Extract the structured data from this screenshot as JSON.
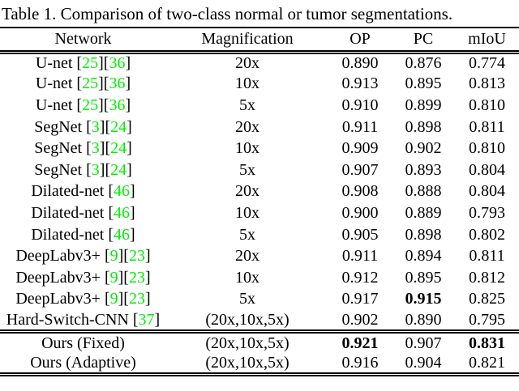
{
  "caption": "Table 1. Comparison of two-class normal or tumor segmentations.",
  "columns": [
    "Network",
    "Magnification",
    "OP",
    "PC",
    "mIoU"
  ],
  "citation_brackets": {
    "open": "[",
    "close": "]"
  },
  "colors": {
    "citation_green": "#00f000",
    "text": "#000000",
    "background": "#ffffff"
  },
  "chart_data": {
    "type": "table",
    "title": "Table 1. Comparison of two-class normal or tumor segmentations.",
    "columns": [
      "Network",
      "Magnification",
      "OP",
      "PC",
      "mIoU"
    ]
  },
  "rows": [
    {
      "network": "U-net",
      "citations": [
        "25",
        "36"
      ],
      "magnification": "20x",
      "op": "0.890",
      "op_bold": false,
      "pc": "0.876",
      "pc_bold": false,
      "miou": "0.774",
      "miou_bold": false,
      "section_end": false
    },
    {
      "network": "U-net",
      "citations": [
        "25",
        "36"
      ],
      "magnification": "10x",
      "op": "0.913",
      "op_bold": false,
      "pc": "0.895",
      "pc_bold": false,
      "miou": "0.813",
      "miou_bold": false,
      "section_end": false
    },
    {
      "network": "U-net",
      "citations": [
        "25",
        "36"
      ],
      "magnification": "5x",
      "op": "0.910",
      "op_bold": false,
      "pc": "0.899",
      "pc_bold": false,
      "miou": "0.810",
      "miou_bold": false,
      "section_end": false
    },
    {
      "network": "SegNet",
      "citations": [
        "3",
        "24"
      ],
      "magnification": "20x",
      "op": "0.911",
      "op_bold": false,
      "pc": "0.898",
      "pc_bold": false,
      "miou": "0.811",
      "miou_bold": false,
      "section_end": false
    },
    {
      "network": "SegNet",
      "citations": [
        "3",
        "24"
      ],
      "magnification": "10x",
      "op": "0.909",
      "op_bold": false,
      "pc": "0.902",
      "pc_bold": false,
      "miou": "0.810",
      "miou_bold": false,
      "section_end": false
    },
    {
      "network": "SegNet",
      "citations": [
        "3",
        "24"
      ],
      "magnification": "5x",
      "op": "0.907",
      "op_bold": false,
      "pc": "0.893",
      "pc_bold": false,
      "miou": "0.804",
      "miou_bold": false,
      "section_end": false
    },
    {
      "network": "Dilated-net",
      "citations": [
        "46"
      ],
      "magnification": "20x",
      "op": "0.908",
      "op_bold": false,
      "pc": "0.888",
      "pc_bold": false,
      "miou": "0.804",
      "miou_bold": false,
      "section_end": false
    },
    {
      "network": "Dilated-net",
      "citations": [
        "46"
      ],
      "magnification": "10x",
      "op": "0.900",
      "op_bold": false,
      "pc": "0.889",
      "pc_bold": false,
      "miou": "0.793",
      "miou_bold": false,
      "section_end": false
    },
    {
      "network": "Dilated-net",
      "citations": [
        "46"
      ],
      "magnification": "5x",
      "op": "0.905",
      "op_bold": false,
      "pc": "0.898",
      "pc_bold": false,
      "miou": "0.802",
      "miou_bold": false,
      "section_end": false
    },
    {
      "network": "DeepLabv3+",
      "citations": [
        "9",
        "23"
      ],
      "magnification": "20x",
      "op": "0.911",
      "op_bold": false,
      "pc": "0.894",
      "pc_bold": false,
      "miou": "0.811",
      "miou_bold": false,
      "section_end": false
    },
    {
      "network": "DeepLabv3+",
      "citations": [
        "9",
        "23"
      ],
      "magnification": "10x",
      "op": "0.912",
      "op_bold": false,
      "pc": "0.895",
      "pc_bold": false,
      "miou": "0.812",
      "miou_bold": false,
      "section_end": false
    },
    {
      "network": "DeepLabv3+",
      "citations": [
        "9",
        "23"
      ],
      "magnification": "5x",
      "op": "0.917",
      "op_bold": false,
      "pc": "0.915",
      "pc_bold": true,
      "miou": "0.825",
      "miou_bold": false,
      "section_end": false
    },
    {
      "network": "Hard-Switch-CNN",
      "citations": [
        "37"
      ],
      "magnification": "(20x,10x,5x)",
      "op": "0.902",
      "op_bold": false,
      "pc": "0.890",
      "pc_bold": false,
      "miou": "0.795",
      "miou_bold": false,
      "section_end": true
    },
    {
      "network": "Ours (Fixed)",
      "citations": [],
      "magnification": "(20x,10x,5x)",
      "op": "0.921",
      "op_bold": true,
      "pc": "0.907",
      "pc_bold": false,
      "miou": "0.831",
      "miou_bold": true,
      "section_end": false
    },
    {
      "network": "Ours (Adaptive)",
      "citations": [],
      "magnification": "(20x,10x,5x)",
      "op": "0.916",
      "op_bold": false,
      "pc": "0.904",
      "pc_bold": false,
      "miou": "0.821",
      "miou_bold": false,
      "section_end": false
    }
  ]
}
